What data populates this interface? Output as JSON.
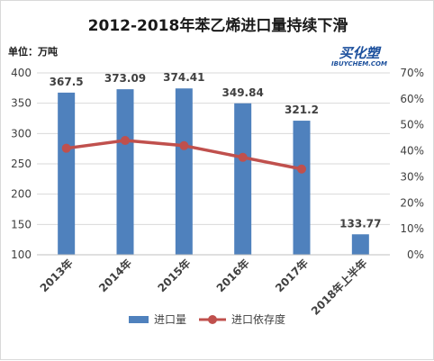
{
  "chart_data": {
    "type": "bar",
    "title": "2012-2018年苯乙烯进口量持续下滑",
    "unit_label": "单位：万吨",
    "categories": [
      "2013年",
      "2014年",
      "2015年",
      "2016年",
      "2017年",
      "2018年上半年"
    ],
    "series": [
      {
        "name": "进口量",
        "type": "bar",
        "axis": "left",
        "color": "#4f81bd",
        "values": [
          367.5,
          373.09,
          374.41,
          349.84,
          321.2,
          133.77
        ],
        "labels": [
          "367.5",
          "373.09",
          "374.41",
          "349.84",
          "321.2",
          "133.77"
        ]
      },
      {
        "name": "进口依存度",
        "type": "line",
        "axis": "right",
        "color": "#c0504d",
        "values": [
          0.41,
          0.44,
          0.42,
          0.375,
          0.33,
          null
        ]
      }
    ],
    "ylim": [
      100,
      400
    ],
    "yticks": [
      "100",
      "150",
      "200",
      "250",
      "300",
      "350",
      "400"
    ],
    "y2lim": [
      0,
      0.7
    ],
    "y2ticks": [
      "0%",
      "10%",
      "20%",
      "30%",
      "40%",
      "50%",
      "60%",
      "70%"
    ],
    "grid": true,
    "legend": "bottom"
  },
  "watermark": {
    "main": "买化塑",
    "sub": "IBUYCHEM.COM",
    "color": "#1b4f9c"
  }
}
